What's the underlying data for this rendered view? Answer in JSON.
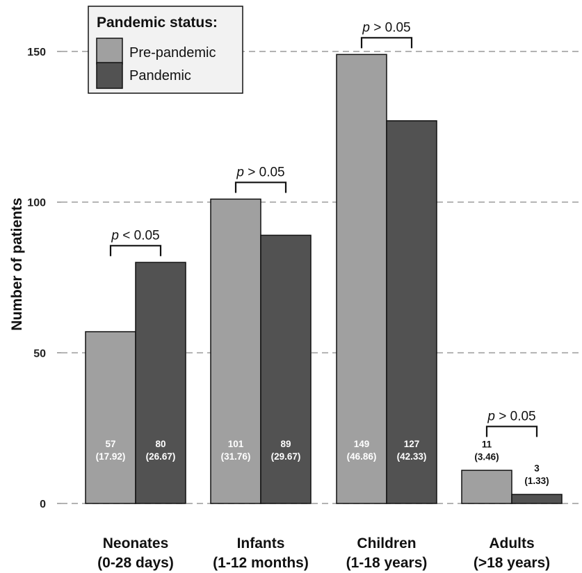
{
  "chart_data": {
    "type": "bar",
    "categories": [
      "Neonates\n(0-28 days)",
      "Infants\n(1-12 months)",
      "Children\n(1-18 years)",
      "Adults\n(>18 years)"
    ],
    "series": [
      {
        "name": "Pre-pandemic",
        "color": "#a0a0a0",
        "values": [
          57,
          101,
          149,
          11
        ],
        "percents": [
          "(17.92)",
          "(31.76)",
          "(46.86)",
          "(3.46)"
        ]
      },
      {
        "name": "Pandemic",
        "color": "#525252",
        "values": [
          80,
          89,
          127,
          3
        ],
        "percents": [
          "(26.67)",
          "(29.67)",
          "(42.33)",
          "(1.33)"
        ]
      }
    ],
    "ylabel": "Number of patients",
    "xlabel": "",
    "ylim": [
      0,
      150
    ],
    "yticks": [
      0,
      50,
      100,
      150
    ],
    "grid": true,
    "legend": {
      "title": "Pandemic status:",
      "position": "top-left"
    },
    "annotations": [
      {
        "category": 0,
        "text_prefix": "p",
        "text_suffix": " < 0.05"
      },
      {
        "category": 1,
        "text_prefix": "p",
        "text_suffix": " > 0.05"
      },
      {
        "category": 2,
        "text_prefix": "p",
        "text_suffix": " > 0.05"
      },
      {
        "category": 3,
        "text_prefix": "p",
        "text_suffix": " > 0.05"
      }
    ]
  }
}
